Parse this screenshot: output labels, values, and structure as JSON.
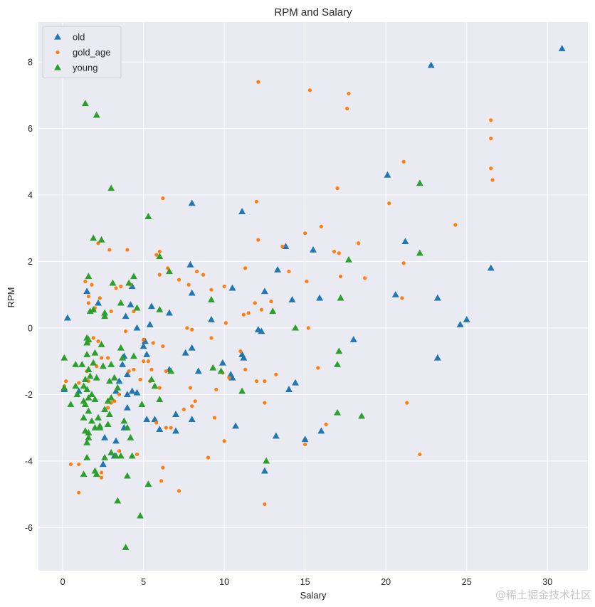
{
  "chart_data": {
    "type": "scatter",
    "title": "RPM and Salary",
    "xlabel": "Salary",
    "ylabel": "RPM",
    "xlim": [
      -1.5,
      32.5
    ],
    "ylim": [
      -7.3,
      9.2
    ],
    "xticks": [
      0,
      5,
      10,
      15,
      20,
      25,
      30
    ],
    "yticks": [
      -6,
      -4,
      -2,
      0,
      2,
      4,
      6,
      8
    ],
    "grid": true,
    "legend_position": "top-left",
    "series": [
      {
        "name": "old",
        "marker": "triangle",
        "color": "#1f77b4",
        "points": [
          [
            30.9,
            8.4
          ],
          [
            22.8,
            7.9
          ],
          [
            20.1,
            4.6
          ],
          [
            26.5,
            1.8
          ],
          [
            21.2,
            2.6
          ],
          [
            20.6,
            1.0
          ],
          [
            23.2,
            0.9
          ],
          [
            25.0,
            0.25
          ],
          [
            24.6,
            0.1
          ],
          [
            23.2,
            -0.9
          ],
          [
            18.0,
            -0.35
          ],
          [
            15.5,
            2.35
          ],
          [
            13.8,
            2.45
          ],
          [
            13.3,
            1.75
          ],
          [
            14.2,
            0.85
          ],
          [
            15.9,
            0.9
          ],
          [
            11.1,
            3.5
          ],
          [
            12.5,
            1.1
          ],
          [
            12.1,
            -0.05
          ],
          [
            12.3,
            -0.1
          ],
          [
            10.5,
            1.2
          ],
          [
            11.1,
            -0.8
          ],
          [
            11.2,
            -0.9
          ],
          [
            10.4,
            -1.4
          ],
          [
            10.5,
            -1.5
          ],
          [
            9.9,
            -1.05
          ],
          [
            14.4,
            -1.65
          ],
          [
            14.0,
            -1.85
          ],
          [
            13.2,
            -3.25
          ],
          [
            15.0,
            -3.35
          ],
          [
            16.0,
            -3.1
          ],
          [
            12.5,
            -4.3
          ],
          [
            10.7,
            -2.95
          ],
          [
            7.9,
            1.9
          ],
          [
            8.0,
            1.05
          ],
          [
            8.0,
            -0.6
          ],
          [
            7.6,
            -0.75
          ],
          [
            8.4,
            -1.3
          ],
          [
            9.2,
            0.25
          ],
          [
            8.0,
            3.75
          ],
          [
            8.0,
            -2.75
          ],
          [
            7.0,
            -2.6
          ],
          [
            7.0,
            -3.1
          ],
          [
            6.6,
            0.45
          ],
          [
            6.6,
            -1.25
          ],
          [
            5.5,
            0.65
          ],
          [
            5.4,
            0.1
          ],
          [
            5.0,
            -0.55
          ],
          [
            5.1,
            -0.4
          ],
          [
            5.2,
            -0.8
          ],
          [
            4.2,
            0.7
          ],
          [
            4.3,
            1.25
          ],
          [
            3.9,
            0.35
          ],
          [
            4.6,
            0.0
          ],
          [
            4.0,
            -1.4
          ],
          [
            3.7,
            -1.1
          ],
          [
            3.8,
            -0.85
          ],
          [
            3.5,
            -1.6
          ],
          [
            3.3,
            -1.9
          ],
          [
            4.0,
            -2.0
          ],
          [
            4.0,
            -2.4
          ],
          [
            4.3,
            -1.9
          ],
          [
            4.6,
            -1.95
          ],
          [
            3.8,
            -3.0
          ],
          [
            3.3,
            -3.4
          ],
          [
            3.2,
            -3.85
          ],
          [
            2.6,
            -3.3
          ],
          [
            2.5,
            -4.1
          ],
          [
            2.2,
            0.75
          ],
          [
            1.5,
            1.1
          ],
          [
            1.0,
            -1.9
          ],
          [
            0.1,
            -1.85
          ],
          [
            0.3,
            0.3
          ],
          [
            6.0,
            -3.05
          ],
          [
            5.7,
            -2.75
          ],
          [
            5.2,
            -2.75
          ]
        ]
      },
      {
        "name": "gold_age",
        "marker": "circle",
        "color": "#ff7f0e",
        "points": [
          [
            12.1,
            7.4
          ],
          [
            15.3,
            7.15
          ],
          [
            17.7,
            7.05
          ],
          [
            17.6,
            6.6
          ],
          [
            26.5,
            6.25
          ],
          [
            26.5,
            5.7
          ],
          [
            26.5,
            4.8
          ],
          [
            26.6,
            4.45
          ],
          [
            21.1,
            5.0
          ],
          [
            17.0,
            4.2
          ],
          [
            20.2,
            3.75
          ],
          [
            24.3,
            3.1
          ],
          [
            16.0,
            3.05
          ],
          [
            12.0,
            3.8
          ],
          [
            15.0,
            2.85
          ],
          [
            12.1,
            2.65
          ],
          [
            13.6,
            2.45
          ],
          [
            16.8,
            2.3
          ],
          [
            17.1,
            2.25
          ],
          [
            18.3,
            2.55
          ],
          [
            21.1,
            1.95
          ],
          [
            18.7,
            1.5
          ],
          [
            17.2,
            1.55
          ],
          [
            15.1,
            1.4
          ],
          [
            14.0,
            1.7
          ],
          [
            11.3,
            1.8
          ],
          [
            10.0,
            1.25
          ],
          [
            9.2,
            1.15
          ],
          [
            8.3,
            1.7
          ],
          [
            8.7,
            1.6
          ],
          [
            11.9,
            0.75
          ],
          [
            12.3,
            0.55
          ],
          [
            11.2,
            0.4
          ],
          [
            11.5,
            0.45
          ],
          [
            10.1,
            0.15
          ],
          [
            15.2,
            0.0
          ],
          [
            9.2,
            -0.3
          ],
          [
            8.0,
            -0.05
          ],
          [
            7.7,
            0.0
          ],
          [
            7.8,
            1.3
          ],
          [
            21.0,
            0.9
          ],
          [
            6.2,
            3.9
          ],
          [
            6.0,
            2.3
          ],
          [
            5.8,
            2.2
          ],
          [
            6.0,
            1.6
          ],
          [
            6.5,
            1.8
          ],
          [
            7.2,
            1.45
          ],
          [
            5.0,
            -0.35
          ],
          [
            5.6,
            -0.45
          ],
          [
            6.2,
            -0.55
          ],
          [
            5.3,
            -1.0
          ],
          [
            5.5,
            -1.25
          ],
          [
            5.0,
            -1.0
          ],
          [
            5.4,
            -1.6
          ],
          [
            4.8,
            -1.55
          ],
          [
            6.4,
            -1.3
          ],
          [
            6.0,
            -1.8
          ],
          [
            4.4,
            -1.25
          ],
          [
            4.1,
            -1.3
          ],
          [
            3.5,
            -2.0
          ],
          [
            3.0,
            -2.25
          ],
          [
            3.2,
            -2.2
          ],
          [
            2.8,
            -2.4
          ],
          [
            4.0,
            2.35
          ],
          [
            2.9,
            2.35
          ],
          [
            2.4,
            2.65
          ],
          [
            2.2,
            2.55
          ],
          [
            3.0,
            0.5
          ],
          [
            3.6,
            1.25
          ],
          [
            3.3,
            1.2
          ],
          [
            4.2,
            1.3
          ],
          [
            4.4,
            0.5
          ],
          [
            2.3,
            0.9
          ],
          [
            2.0,
            0.6
          ],
          [
            1.6,
            0.95
          ],
          [
            1.8,
            1.3
          ],
          [
            1.6,
            0.75
          ],
          [
            1.4,
            1.4
          ],
          [
            3.9,
            -0.1
          ],
          [
            1.9,
            -0.3
          ],
          [
            2.2,
            -0.4
          ],
          [
            1.6,
            -0.45
          ],
          [
            1.6,
            -1.6
          ],
          [
            2.4,
            -0.9
          ],
          [
            2.8,
            -0.9
          ],
          [
            2.1,
            -1.15
          ],
          [
            1.5,
            -1.3
          ],
          [
            1.0,
            -1.65
          ],
          [
            0.2,
            -1.6
          ],
          [
            0.1,
            -1.75
          ],
          [
            0.5,
            -4.1
          ],
          [
            1.0,
            -4.1
          ],
          [
            1.0,
            -4.95
          ],
          [
            2.4,
            -4.35
          ],
          [
            2.4,
            -4.5
          ],
          [
            3.5,
            -3.7
          ],
          [
            4.6,
            -3.8
          ],
          [
            5.8,
            -2.85
          ],
          [
            6.4,
            -3.0
          ],
          [
            6.7,
            -3.0
          ],
          [
            6.2,
            -4.2
          ],
          [
            6.1,
            -4.6
          ],
          [
            7.2,
            -4.9
          ],
          [
            8.0,
            -2.35
          ],
          [
            8.2,
            -2.2
          ],
          [
            7.9,
            -1.8
          ],
          [
            7.5,
            -2.45
          ],
          [
            9.4,
            -2.7
          ],
          [
            10.0,
            -3.4
          ],
          [
            10.3,
            -1.5
          ],
          [
            9.9,
            -1.35
          ],
          [
            9.5,
            -1.85
          ],
          [
            11.0,
            -0.7
          ],
          [
            11.3,
            -1.25
          ],
          [
            12.0,
            -1.6
          ],
          [
            12.5,
            -1.6
          ],
          [
            13.2,
            -1.4
          ],
          [
            12.5,
            -2.25
          ],
          [
            12.5,
            -5.3
          ],
          [
            9.0,
            -3.9
          ],
          [
            15.0,
            -3.5
          ],
          [
            15.8,
            -1.2
          ],
          [
            16.3,
            -2.9
          ],
          [
            21.3,
            -2.25
          ],
          [
            22.1,
            -3.8
          ],
          [
            12.9,
            0.8
          ]
        ]
      },
      {
        "name": "young",
        "marker": "triangle",
        "color": "#2ca02c",
        "points": [
          [
            1.4,
            6.75
          ],
          [
            2.1,
            6.4
          ],
          [
            3.0,
            4.2
          ],
          [
            22.1,
            4.35
          ],
          [
            22.1,
            2.25
          ],
          [
            17.7,
            2.05
          ],
          [
            5.3,
            3.35
          ],
          [
            1.9,
            2.7
          ],
          [
            2.4,
            2.65
          ],
          [
            6.0,
            2.15
          ],
          [
            6.6,
            1.7
          ],
          [
            3.1,
            1.35
          ],
          [
            4.4,
            1.55
          ],
          [
            4.1,
            1.35
          ],
          [
            1.6,
            1.55
          ],
          [
            9.2,
            0.85
          ],
          [
            13.0,
            0.5
          ],
          [
            14.4,
            0.0
          ],
          [
            17.2,
            0.9
          ],
          [
            17.1,
            -0.7
          ],
          [
            17.0,
            -1.1
          ],
          [
            18.5,
            -2.65
          ],
          [
            17.0,
            -2.55
          ],
          [
            12.6,
            -4.0
          ],
          [
            11.1,
            -1.9
          ],
          [
            9.3,
            -1.2
          ],
          [
            1.7,
            0.5
          ],
          [
            1.9,
            0.55
          ],
          [
            2.6,
            0.35
          ],
          [
            2.6,
            0.45
          ],
          [
            3.6,
            0.75
          ],
          [
            4.6,
            0.6
          ],
          [
            6.0,
            0.55
          ],
          [
            1.5,
            -0.3
          ],
          [
            1.5,
            -0.45
          ],
          [
            1.6,
            -0.35
          ],
          [
            1.5,
            -0.8
          ],
          [
            2.0,
            -0.75
          ],
          [
            2.4,
            -0.5
          ],
          [
            3.6,
            -0.6
          ],
          [
            3.7,
            -0.9
          ],
          [
            4.4,
            -0.85
          ],
          [
            3.0,
            -1.1
          ],
          [
            2.5,
            -1.15
          ],
          [
            1.9,
            -1.05
          ],
          [
            1.2,
            -1.1
          ],
          [
            0.8,
            -1.1
          ],
          [
            0.1,
            -0.9
          ],
          [
            0.8,
            -1.75
          ],
          [
            1.6,
            -1.25
          ],
          [
            1.7,
            -1.45
          ],
          [
            1.4,
            -1.55
          ],
          [
            2.1,
            -1.5
          ],
          [
            1.3,
            -1.75
          ],
          [
            1.5,
            -1.85
          ],
          [
            1.8,
            -2.0
          ],
          [
            2.0,
            -2.15
          ],
          [
            1.6,
            -2.1
          ],
          [
            1.4,
            -2.3
          ],
          [
            1.3,
            -2.2
          ],
          [
            0.5,
            -2.3
          ],
          [
            1.3,
            -2.7
          ],
          [
            1.6,
            -2.5
          ],
          [
            2.6,
            -2.45
          ],
          [
            2.8,
            -2.2
          ],
          [
            3.0,
            -2.1
          ],
          [
            3.4,
            -1.8
          ],
          [
            3.2,
            -1.5
          ],
          [
            2.9,
            -1.6
          ],
          [
            1.8,
            -2.8
          ],
          [
            2.2,
            -2.7
          ],
          [
            2.3,
            -2.95
          ],
          [
            2.0,
            -3.0
          ],
          [
            2.3,
            -3.0
          ],
          [
            2.8,
            -2.9
          ],
          [
            1.6,
            -3.15
          ],
          [
            1.5,
            -3.45
          ],
          [
            1.5,
            -3.9
          ],
          [
            2.0,
            -4.3
          ],
          [
            1.3,
            -4.4
          ],
          [
            2.1,
            -4.4
          ],
          [
            2.6,
            -3.9
          ],
          [
            3.0,
            -3.75
          ],
          [
            3.3,
            -3.85
          ],
          [
            3.6,
            -3.85
          ],
          [
            4.3,
            -3.85
          ],
          [
            3.4,
            -5.2
          ],
          [
            4.0,
            -4.45
          ],
          [
            5.3,
            -4.7
          ],
          [
            4.8,
            -5.65
          ],
          [
            3.9,
            -6.6
          ],
          [
            4.2,
            -3.3
          ],
          [
            4.9,
            -2.3
          ],
          [
            6.0,
            -2.15
          ],
          [
            5.7,
            -1.75
          ],
          [
            5.5,
            -1.55
          ],
          [
            6.7,
            -1.3
          ],
          [
            9.8,
            -1.3
          ],
          [
            0.1,
            -1.8
          ],
          [
            0.9,
            -2.0
          ],
          [
            1.4,
            -3.1
          ],
          [
            2.9,
            -2.6
          ],
          [
            3.8,
            -2.8
          ],
          [
            4.0,
            -3.0
          ],
          [
            1.6,
            -3.3
          ]
        ]
      }
    ]
  },
  "watermark": "@稀土掘金技术社区"
}
